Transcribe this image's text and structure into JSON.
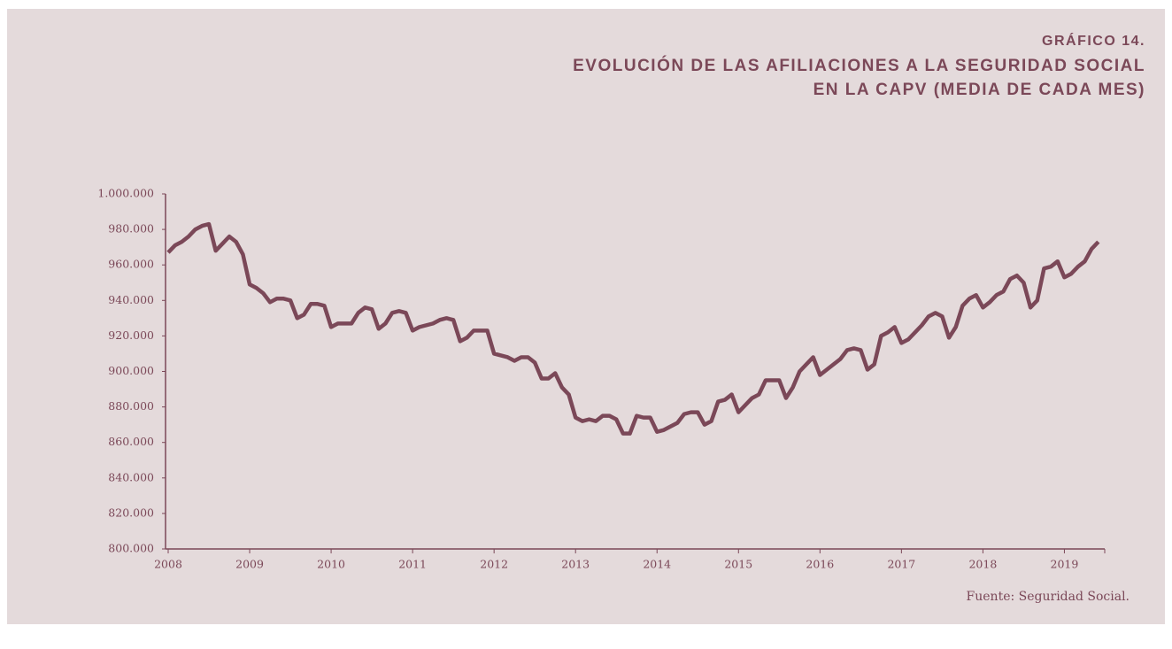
{
  "chart_data": {
    "type": "line",
    "kicker": "GRÁFICO 14.",
    "title_lines": [
      "EVOLUCIÓN DE LAS AFILIACIONES A LA SEGURIDAD SOCIAL",
      "EN LA CAPV (MEDIA DE CADA MES)"
    ],
    "source": "Fuente: Seguridad Social.",
    "categories": [
      "2008",
      null,
      null,
      null,
      null,
      null,
      null,
      null,
      null,
      null,
      null,
      null,
      "2009",
      null,
      null,
      null,
      null,
      null,
      null,
      null,
      null,
      null,
      null,
      null,
      "2010",
      null,
      null,
      null,
      null,
      null,
      null,
      null,
      null,
      null,
      null,
      null,
      "2011",
      null,
      null,
      null,
      null,
      null,
      null,
      null,
      null,
      null,
      null,
      null,
      "2012",
      null,
      null,
      null,
      null,
      null,
      null,
      null,
      null,
      null,
      null,
      null,
      "2013",
      null,
      null,
      null,
      null,
      null,
      null,
      null,
      null,
      null,
      null,
      null,
      "2014",
      null,
      null,
      null,
      null,
      null,
      null,
      null,
      null,
      null,
      null,
      null,
      "2015",
      null,
      null,
      null,
      null,
      null,
      null,
      null,
      null,
      null,
      null,
      null,
      "2016",
      null,
      null,
      null,
      null,
      null,
      null,
      null,
      null,
      null,
      null,
      null,
      "2017",
      null,
      null,
      null,
      null,
      null,
      null,
      null,
      null,
      null,
      null,
      null,
      "2018",
      null,
      null,
      null,
      null,
      null,
      null,
      null,
      null,
      null,
      null,
      null,
      "2019",
      null,
      null,
      null,
      null,
      null
    ],
    "series": [
      {
        "color": "#7b4858",
        "values": [
          967000,
          971000,
          973000,
          976000,
          980000,
          982000,
          983000,
          968000,
          972000,
          976000,
          973000,
          966000,
          949000,
          947000,
          944000,
          939000,
          941000,
          941000,
          940000,
          930000,
          932000,
          938000,
          938000,
          937000,
          925000,
          927000,
          927000,
          927000,
          933000,
          936000,
          935000,
          924000,
          927000,
          933000,
          934000,
          933000,
          923000,
          925000,
          926000,
          927000,
          929000,
          930000,
          929000,
          917000,
          919000,
          923000,
          923000,
          923000,
          910000,
          909000,
          908000,
          906000,
          908000,
          908000,
          905000,
          896000,
          896000,
          899000,
          891000,
          887000,
          874000,
          872000,
          873000,
          872000,
          875000,
          875000,
          873000,
          865000,
          865000,
          875000,
          874000,
          874000,
          866000,
          867000,
          869000,
          871000,
          876000,
          877000,
          877000,
          870000,
          872000,
          883000,
          884000,
          887000,
          877000,
          881000,
          885000,
          887000,
          895000,
          895000,
          895000,
          885000,
          891000,
          900000,
          904000,
          908000,
          898000,
          901000,
          904000,
          907000,
          912000,
          913000,
          912000,
          901000,
          904000,
          920000,
          922000,
          925000,
          916000,
          918000,
          922000,
          926000,
          931000,
          933000,
          931000,
          919000,
          925000,
          937000,
          941000,
          943000,
          936000,
          939000,
          943000,
          945000,
          952000,
          954000,
          950000,
          936000,
          940000,
          958000,
          959000,
          962000,
          953000,
          955000,
          959000,
          962000,
          969000,
          973000
        ]
      }
    ],
    "ylim": [
      800000,
      1000000
    ],
    "yticks": [
      {
        "value": 800000,
        "label": "800.000"
      },
      {
        "value": 820000,
        "label": "820.000"
      },
      {
        "value": 840000,
        "label": "840.000"
      },
      {
        "value": 860000,
        "label": "860.000"
      },
      {
        "value": 880000,
        "label": "880.000"
      },
      {
        "value": 900000,
        "label": "900.000"
      },
      {
        "value": 920000,
        "label": "920.000"
      },
      {
        "value": 940000,
        "label": "940.000"
      },
      {
        "value": 960000,
        "label": "960.000"
      },
      {
        "value": 980000,
        "label": "980.000"
      },
      {
        "value": 1000000,
        "label": "1.000.000"
      }
    ],
    "grid": false
  }
}
